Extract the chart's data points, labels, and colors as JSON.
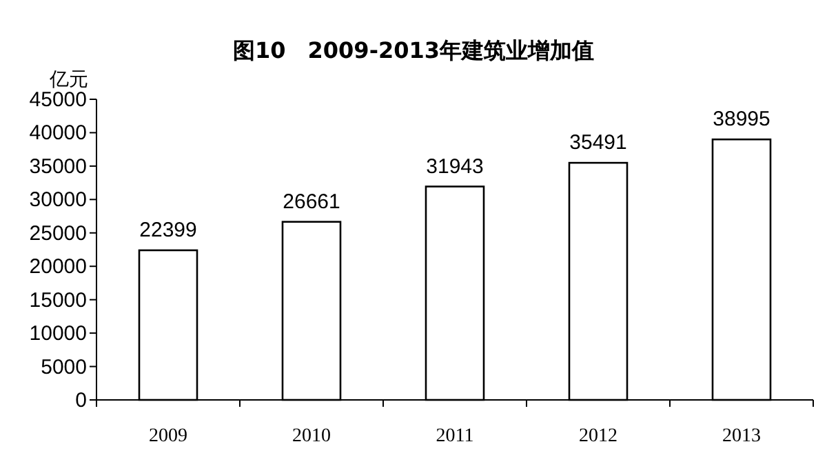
{
  "chart_data": {
    "type": "bar",
    "title": "图10　2009-2013年建筑业增加值",
    "ylabel": "亿元",
    "categories": [
      "2009",
      "2010",
      "2011",
      "2012",
      "2013"
    ],
    "values": [
      22399,
      26661,
      31943,
      35491,
      38995
    ],
    "color": "#ffffff",
    "ylim": [
      0,
      45000
    ],
    "yticks": [
      0,
      5000,
      10000,
      15000,
      20000,
      25000,
      30000,
      35000,
      40000,
      45000
    ],
    "data_labels": true
  }
}
